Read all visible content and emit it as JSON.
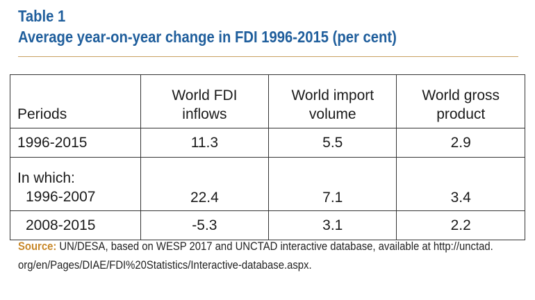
{
  "header": {
    "table_label": "Table 1",
    "title": "Average year-on-year change in FDI 1996-2015 (per cent)"
  },
  "table": {
    "columns": [
      "Periods",
      "World FDI inflows",
      "World import volume",
      "World gross product"
    ],
    "column_lines": [
      [
        "Periods"
      ],
      [
        "World FDI",
        "inflows"
      ],
      [
        "World import",
        "volume"
      ],
      [
        "World gross",
        "product"
      ]
    ],
    "rows": [
      {
        "period": "1996-2015",
        "fdi": "11.3",
        "imports": "5.5",
        "gdp": "2.9"
      },
      {
        "period_heading": "In which:",
        "period": "1996-2007",
        "fdi": "22.4",
        "imports": "7.1",
        "gdp": "3.4"
      },
      {
        "period": "2008-2015",
        "fdi": "-5.3",
        "imports": "3.1",
        "gdp": "2.2"
      }
    ]
  },
  "source": {
    "label": "Source:",
    "text": "UN/DESA, based on WESP 2017 and UNCTAD interactive database, available at http://unctad.",
    "text_line2": "org/en/Pages/DIAE/FDI%20Statistics/Interactive-database.aspx."
  },
  "colors": {
    "title": "#1f5e9c",
    "source_label": "#c8882a",
    "rule": "#c8a060"
  }
}
